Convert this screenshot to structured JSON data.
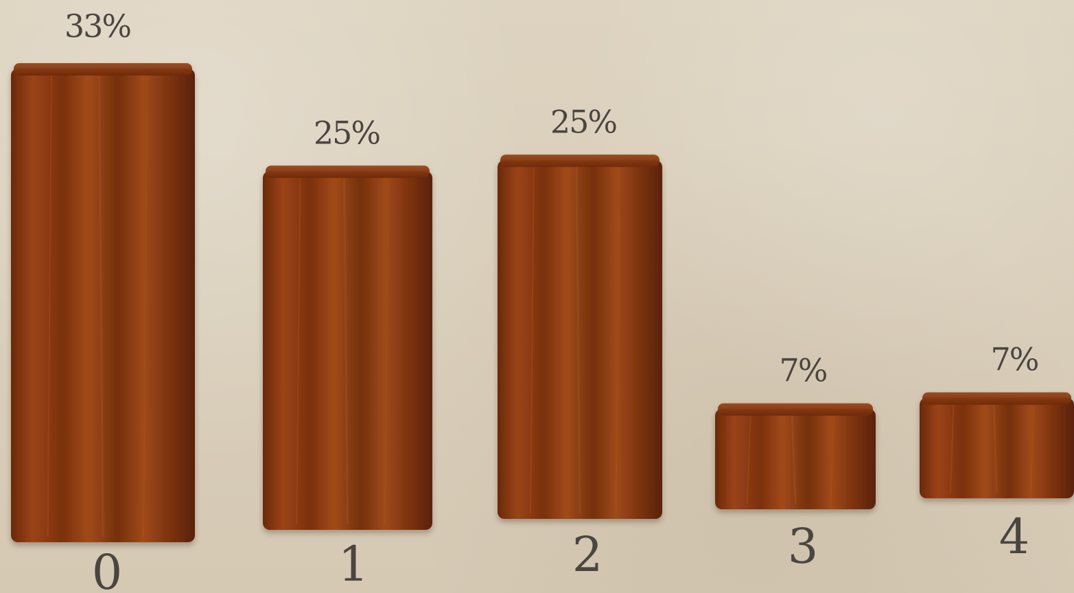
{
  "chart_data": {
    "type": "bar",
    "categories": [
      "0",
      "1",
      "2",
      "3",
      "4"
    ],
    "values": [
      33,
      25,
      25,
      7,
      7
    ],
    "value_labels": [
      "33%",
      "25%",
      "25%",
      "7%",
      "7%"
    ],
    "title": "",
    "xlabel": "",
    "ylabel": "",
    "ylim": [
      0,
      33
    ],
    "grid": false,
    "legend": "none",
    "colors": {
      "background": "#d8cdb9",
      "bar_dark": "#5a2208",
      "bar_mid": "#8c3a10",
      "bar_light": "#b85a20",
      "text": "#4b4540"
    }
  }
}
